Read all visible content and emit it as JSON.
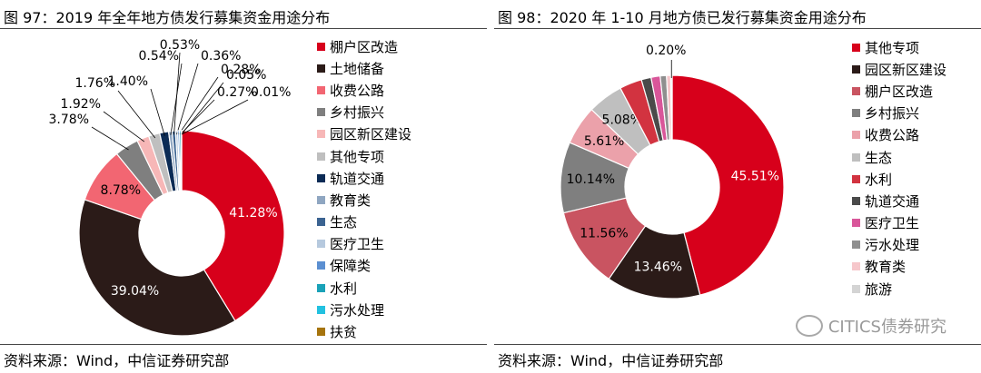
{
  "chart_data": [
    {
      "type": "pie",
      "title": "图 97：2019 年全年地方债发行募集资金用途分布",
      "source": "资料来源：Wind，中信证券研究部",
      "labels": [
        "棚户区改造",
        "土地储备",
        "收费公路",
        "乡村振兴",
        "园区新区建设",
        "其他专项",
        "轨道交通",
        "教育类",
        "生态",
        "医疗卫生",
        "保障类",
        "水利",
        "污水处理",
        "扶贫"
      ],
      "values": [
        41.28,
        39.04,
        8.78,
        3.78,
        1.92,
        1.76,
        1.4,
        0.54,
        0.53,
        0.36,
        0.28,
        0.27,
        0.05,
        0.01
      ],
      "value_labels": [
        "41.28%",
        "39.04%",
        "8.78%",
        "3.78%",
        "1.92%",
        "1.76%",
        "1.40%",
        "0.54%",
        "0.53%",
        "0.36%",
        "0.28%",
        "0.27%",
        "0.05%",
        "0.01%"
      ],
      "colors": [
        "#d7001b",
        "#2b1b18",
        "#f26672",
        "#7f7f7f",
        "#f7b7b7",
        "#bfbfbf",
        "#0b2b55",
        "#8fa6c1",
        "#3b6391",
        "#b6c9de",
        "#5b8fd1",
        "#1aa2b8",
        "#22c1e0",
        "#a6740d"
      ],
      "legend_position": "right"
    },
    {
      "type": "pie",
      "title": "图 98：2020 年 1-10 月地方债已发行募集资金用途分布",
      "source": "资料来源：Wind，中信证券研究部",
      "labels": [
        "其他专项",
        "园区新区建设",
        "棚户区改造",
        "乡村振兴",
        "收费公路",
        "生态",
        "水利",
        "轨道交通",
        "医疗卫生",
        "污水处理",
        "教育类",
        "旅游"
      ],
      "values": [
        45.51,
        13.46,
        11.56,
        10.14,
        5.61,
        5.08,
        3.2,
        1.4,
        1.3,
        0.9,
        0.6,
        0.2
      ],
      "value_labels": [
        "45.51%",
        "13.46%",
        "11.56%",
        "10.14%",
        "5.61%",
        "5.08%",
        "",
        "",
        "",
        "",
        "",
        "0.20%"
      ],
      "colors": [
        "#d7001b",
        "#2b1b18",
        "#c95461",
        "#7f7f7f",
        "#eba1aa",
        "#bfbfbf",
        "#d23340",
        "#4a4a4a",
        "#d9569a",
        "#8f8f8f",
        "#f6c7cb",
        "#d4d4d4"
      ],
      "legend_position": "right"
    }
  ],
  "watermark": {
    "text": "CITICS债券研究"
  }
}
